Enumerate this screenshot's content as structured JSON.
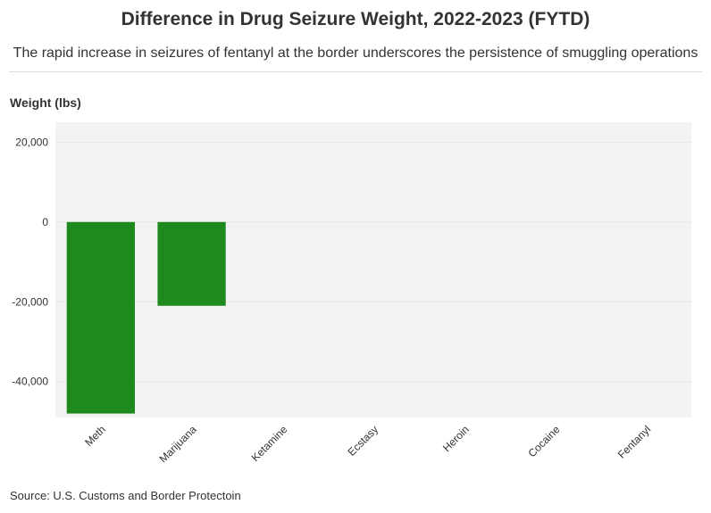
{
  "chart_data": {
    "type": "bar",
    "title": "Difference in Drug Seizure Weight, 2022-2023 (FYTD)",
    "subtitle": "The rapid increase in seizures of fentanyl at the border underscores the persistence of smuggling operations",
    "ylabel": "Weight (lbs)",
    "xlabel": "",
    "categories": [
      "Meth",
      "Marijuana",
      "Ketamine",
      "Ecstasy",
      "Heroin",
      "Cocaine",
      "Fentanyl"
    ],
    "values": [
      -48000,
      -21000,
      0,
      0,
      0,
      0,
      0
    ],
    "ylim": [
      -49000,
      25000
    ],
    "yticks": [
      20000,
      0,
      -20000,
      -40000
    ],
    "ytick_labels": [
      "20,000",
      "0",
      "-20,000",
      "-40,000"
    ],
    "bar_color": "#1e8a1e",
    "grid": true,
    "source": "Source: U.S. Customs and Border Protectoin"
  }
}
